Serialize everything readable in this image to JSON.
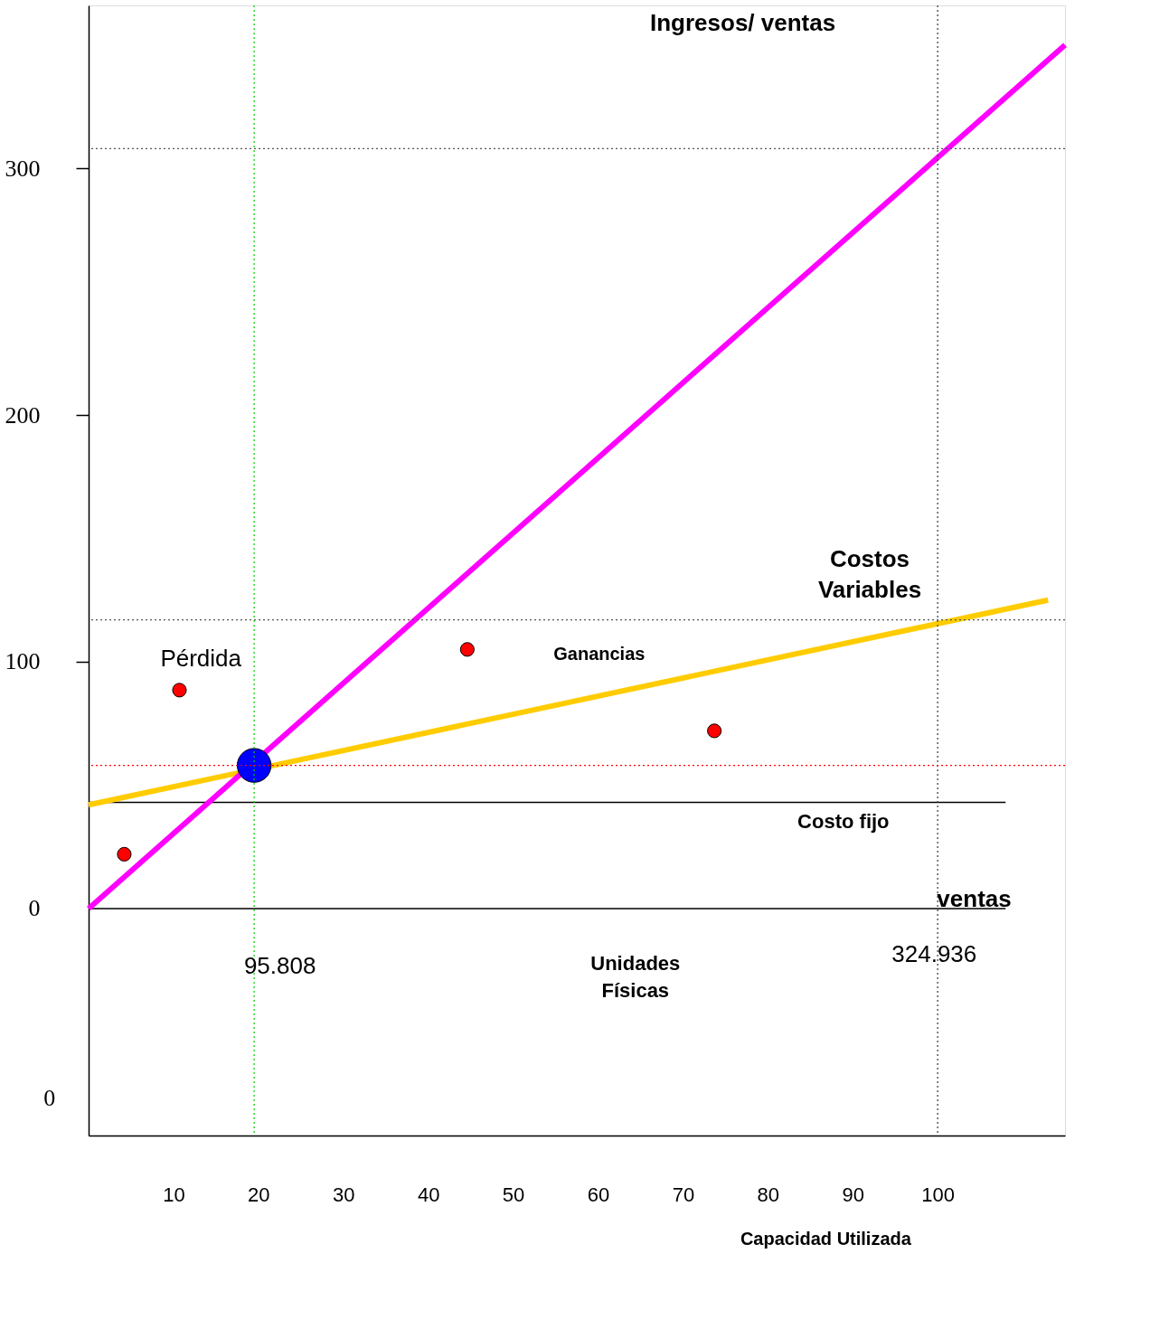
{
  "chart_data": {
    "type": "line",
    "xlabel": "Capacidad Utilizada",
    "xlim": [
      0,
      115
    ],
    "ylim": [
      -92,
      366
    ],
    "xticks": [
      10,
      20,
      30,
      40,
      50,
      60,
      70,
      80,
      90,
      100
    ],
    "yticks": [
      0,
      100,
      200,
      300
    ],
    "grid": false,
    "line_style": "solid",
    "series": [
      {
        "color": "#000000",
        "x": [
          0,
          108
        ],
        "values": [
          0,
          0
        ]
      },
      {
        "color": "#000000",
        "x": [
          0,
          108
        ],
        "values": [
          43,
          43
        ]
      },
      {
        "color": "#ffcc00",
        "x": [
          0,
          113
        ],
        "values": [
          42,
          125
        ]
      },
      {
        "color": "#ff00ff",
        "x": [
          0,
          115
        ],
        "values": [
          0,
          350
        ]
      },
      {
        "type": "scatter",
        "marker": "circle",
        "color": "#0000ff",
        "x": [
          19.5
        ],
        "values": [
          58
        ]
      },
      {
        "type": "scatter",
        "marker": "circle",
        "color": "#ff0000",
        "x": [
          4.2,
          10.7,
          44.6,
          73.7
        ],
        "values": [
          22,
          88.5,
          105,
          72
        ]
      }
    ],
    "ref_lines": [
      {
        "axis": "y",
        "value": 308,
        "label": null,
        "color": "#555555",
        "line_style": "dotted"
      },
      {
        "axis": "y",
        "value": 117,
        "label": null,
        "color": "#555555",
        "line_style": "dotted"
      },
      {
        "axis": "x",
        "value": 100,
        "label": null,
        "color": "#333333",
        "line_style": "dotted"
      },
      {
        "axis": "x",
        "value": 19.5,
        "label": null,
        "color": "#00cc00",
        "line_style": "dotted"
      },
      {
        "axis": "y",
        "value": 58,
        "label": null,
        "color": "#ff0000",
        "line_style": "dotted"
      }
    ],
    "annotations": [
      "Ingresos/ ventas",
      "Costos\nVariables",
      "Pérdida",
      "Ganancias",
      "Costo fijo",
      "ventas",
      "95.808",
      "Unidades\nFísicas",
      "324.936",
      "0"
    ]
  }
}
